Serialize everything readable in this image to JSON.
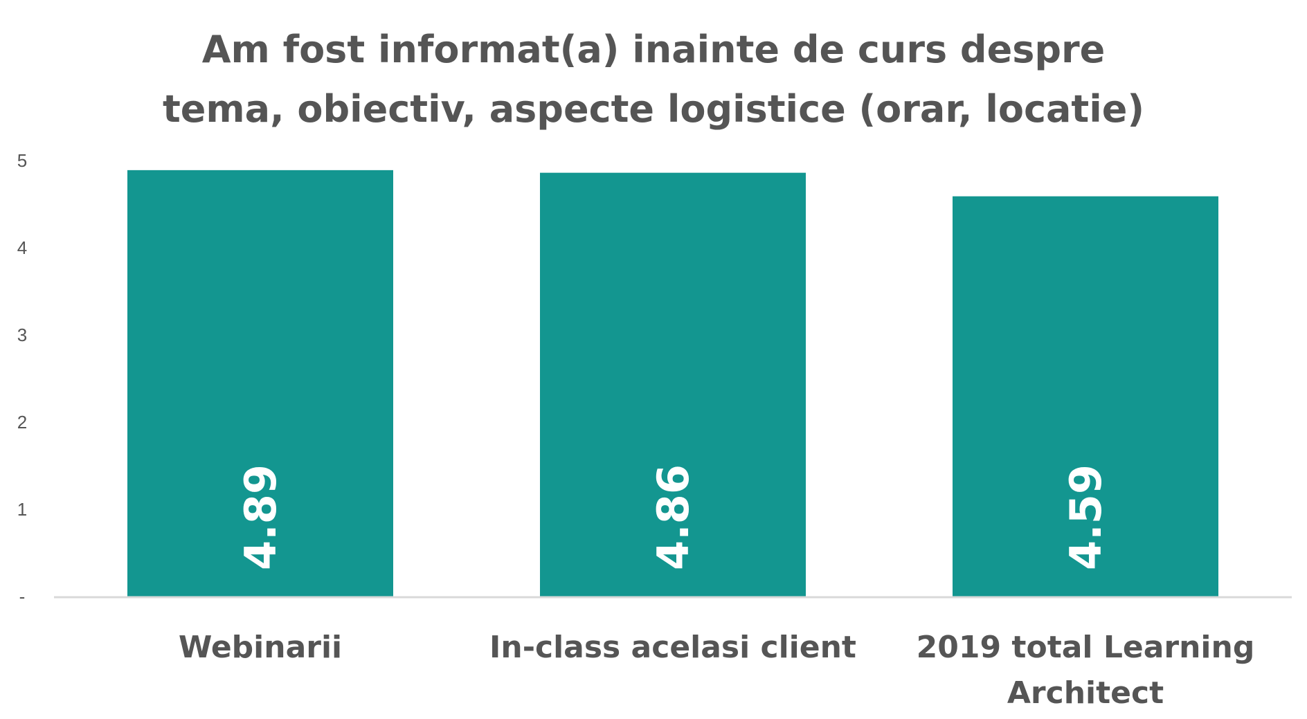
{
  "chart_data": {
    "type": "bar",
    "title_lines": [
      "Am fost informat(a) inainte de curs despre",
      "tema, obiectiv, aspecte logistice (orar, locatie)"
    ],
    "categories": [
      [
        "Webinarii"
      ],
      [
        "In-class acelasi client"
      ],
      [
        "2019 total Learning",
        "Architect"
      ]
    ],
    "values": [
      4.89,
      4.86,
      4.59
    ],
    "data_labels": [
      "4.89",
      "4.86",
      "4.59"
    ],
    "y_ticks": [
      {
        "value": 0,
        "label": "-"
      },
      {
        "value": 1,
        "label": "1"
      },
      {
        "value": 2,
        "label": "2"
      },
      {
        "value": 3,
        "label": "3"
      },
      {
        "value": 4,
        "label": "4"
      },
      {
        "value": 5,
        "label": "5"
      }
    ],
    "ylim": [
      0,
      5
    ],
    "grid": false,
    "legend": "none",
    "colors": {
      "bar": "#139690",
      "text": "#555555",
      "axis": "#d9d9d9",
      "data_label": "#ffffff"
    }
  }
}
